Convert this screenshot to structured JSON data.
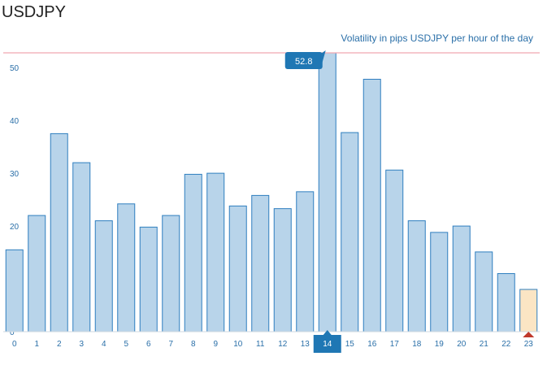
{
  "page": {
    "title": "USDJPY"
  },
  "chart_data": {
    "type": "bar",
    "title": "Volatility in pips USDJPY per hour of the day",
    "xlabel": "",
    "ylabel": "",
    "categories": [
      "0",
      "1",
      "2",
      "3",
      "4",
      "5",
      "6",
      "7",
      "8",
      "9",
      "10",
      "11",
      "12",
      "13",
      "14",
      "15",
      "16",
      "17",
      "18",
      "19",
      "20",
      "21",
      "22",
      "23"
    ],
    "values": [
      15.5,
      22,
      37.5,
      32,
      21,
      24.2,
      19.8,
      22,
      29.8,
      30,
      23.8,
      25.8,
      23.3,
      26.5,
      52.8,
      37.7,
      47.8,
      30.6,
      21,
      18.8,
      20,
      15.1,
      11,
      8
    ],
    "ylim": [
      0,
      52.8
    ],
    "yticks": [
      0,
      10,
      20,
      30,
      40,
      50
    ],
    "highlighted_index": 14,
    "current_index": 23,
    "tooltip": "52.8",
    "max_line": 52.8,
    "grid": false,
    "colors": {
      "bar_fill": "#b8d4ea",
      "bar_stroke": "#2f7fbf",
      "current_fill": "#fbe5c4",
      "highlight": "#1f77b4",
      "max_line": "#f0a8b0",
      "axis_text": "#2a6fa8",
      "marker": "#c0392b"
    }
  }
}
